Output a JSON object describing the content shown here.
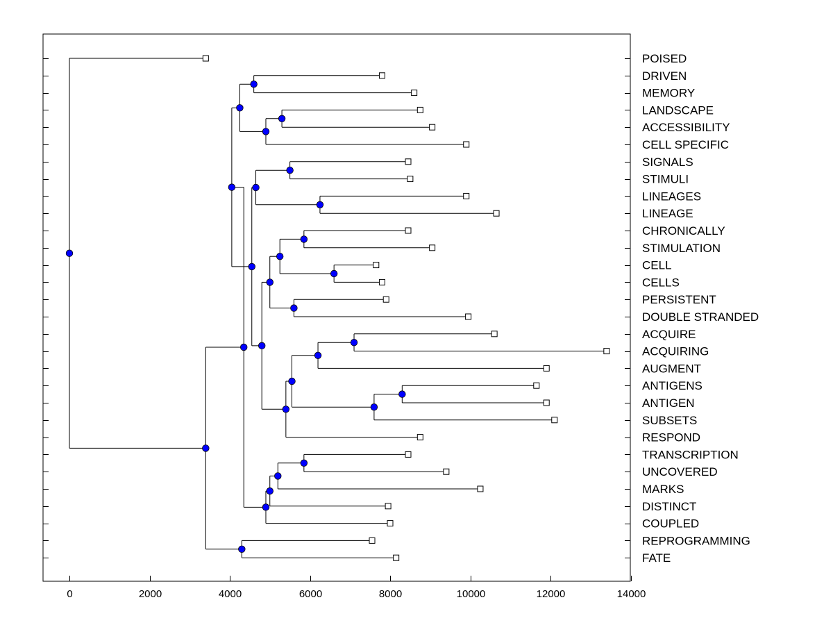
{
  "chart_data": {
    "type": "dendrogram",
    "orientation": "left-to-right",
    "xlim": [
      -650,
      14050
    ],
    "xticks": [
      0,
      2000,
      4000,
      6000,
      8000,
      10000,
      12000,
      14000
    ],
    "xtick_labels": [
      "0",
      "2000",
      "4000",
      "6000",
      "8000",
      "10000",
      "12000",
      "14000"
    ],
    "leaves": [
      {
        "id": 0,
        "label": "POISED",
        "value": 3400
      },
      {
        "id": 1,
        "label": "DRIVEN",
        "value": 7800
      },
      {
        "id": 2,
        "label": "MEMORY",
        "value": 8600
      },
      {
        "id": 3,
        "label": "LANDSCAPE",
        "value": 8750
      },
      {
        "id": 4,
        "label": "ACCESSIBILITY",
        "value": 9050
      },
      {
        "id": 5,
        "label": "CELL SPECIFIC",
        "value": 9900
      },
      {
        "id": 6,
        "label": "SIGNALS",
        "value": 8450
      },
      {
        "id": 7,
        "label": "STIMULI",
        "value": 8500
      },
      {
        "id": 8,
        "label": "LINEAGES",
        "value": 9900
      },
      {
        "id": 9,
        "label": "LINEAGE",
        "value": 10650
      },
      {
        "id": 10,
        "label": "CHRONICALLY",
        "value": 8450
      },
      {
        "id": 11,
        "label": "STIMULATION",
        "value": 9050
      },
      {
        "id": 12,
        "label": "CELL",
        "value": 7650
      },
      {
        "id": 13,
        "label": "CELLS",
        "value": 7800
      },
      {
        "id": 14,
        "label": "PERSISTENT",
        "value": 7900
      },
      {
        "id": 15,
        "label": "DOUBLE STRANDED",
        "value": 9950
      },
      {
        "id": 16,
        "label": "ACQUIRE",
        "value": 10600
      },
      {
        "id": 17,
        "label": "ACQUIRING",
        "value": 13400
      },
      {
        "id": 18,
        "label": "AUGMENT",
        "value": 11900
      },
      {
        "id": 19,
        "label": "ANTIGENS",
        "value": 11650
      },
      {
        "id": 20,
        "label": "ANTIGEN",
        "value": 11900
      },
      {
        "id": 21,
        "label": "SUBSETS",
        "value": 12100
      },
      {
        "id": 22,
        "label": "RESPOND",
        "value": 8750
      },
      {
        "id": 23,
        "label": "TRANSCRIPTION",
        "value": 8450
      },
      {
        "id": 24,
        "label": "UNCOVERED",
        "value": 9400
      },
      {
        "id": 25,
        "label": "MARKS",
        "value": 10250
      },
      {
        "id": 26,
        "label": "DISTINCT",
        "value": 7950
      },
      {
        "id": 27,
        "label": "COUPLED",
        "value": 8000
      },
      {
        "id": 28,
        "label": "REPROGRAMMING",
        "value": 7550
      },
      {
        "id": 29,
        "label": "FATE",
        "value": 8150
      }
    ],
    "merges": [
      {
        "id": "m1",
        "value": 4600,
        "children": [
          1,
          2
        ]
      },
      {
        "id": "m2",
        "value": 5300,
        "children": [
          3,
          4
        ]
      },
      {
        "id": "m3",
        "value": 4900,
        "children": [
          "m2",
          5
        ]
      },
      {
        "id": "m4",
        "value": 4250,
        "children": [
          "m1",
          "m3"
        ]
      },
      {
        "id": "m5",
        "value": 5500,
        "children": [
          6,
          7
        ]
      },
      {
        "id": "m6",
        "value": 6250,
        "children": [
          8,
          9
        ]
      },
      {
        "id": "m7",
        "value": 4650,
        "children": [
          "m5",
          "m6"
        ]
      },
      {
        "id": "m8",
        "value": 5850,
        "children": [
          10,
          11
        ]
      },
      {
        "id": "m9",
        "value": 6600,
        "children": [
          12,
          13
        ]
      },
      {
        "id": "m10",
        "value": 5250,
        "children": [
          "m8",
          "m9"
        ]
      },
      {
        "id": "m11",
        "value": 5600,
        "children": [
          14,
          15
        ]
      },
      {
        "id": "m12",
        "value": 5000,
        "children": [
          "m10",
          "m11"
        ]
      },
      {
        "id": "m13",
        "value": 7100,
        "children": [
          16,
          17
        ]
      },
      {
        "id": "m14",
        "value": 6200,
        "children": [
          "m13",
          18
        ]
      },
      {
        "id": "m15",
        "value": 8300,
        "children": [
          19,
          20
        ]
      },
      {
        "id": "m16",
        "value": 7600,
        "children": [
          "m15",
          21
        ]
      },
      {
        "id": "m17",
        "value": 5550,
        "children": [
          "m14",
          "m16"
        ]
      },
      {
        "id": "m18",
        "value": 5400,
        "children": [
          "m17",
          22
        ]
      },
      {
        "id": "m19",
        "value": 4800,
        "children": [
          "m12",
          "m18"
        ]
      },
      {
        "id": "m20",
        "value": 4550,
        "children": [
          "m7",
          "m19"
        ]
      },
      {
        "id": "m21",
        "value": 4050,
        "children": [
          "m4",
          "m20"
        ]
      },
      {
        "id": "m22",
        "value": 5850,
        "children": [
          23,
          24
        ]
      },
      {
        "id": "m23",
        "value": 5200,
        "children": [
          "m22",
          25
        ]
      },
      {
        "id": "m24",
        "value": 5000,
        "children": [
          "m23",
          26
        ]
      },
      {
        "id": "m25",
        "value": 4900,
        "children": [
          "m24",
          27
        ]
      },
      {
        "id": "m26",
        "value": 4350,
        "children": [
          "m21",
          "m25"
        ]
      },
      {
        "id": "m27",
        "value": 4300,
        "children": [
          28,
          29
        ]
      },
      {
        "id": "m28",
        "value": 3400,
        "children": [
          "m26",
          "m27"
        ]
      },
      {
        "id": "m29",
        "value": 0,
        "children": [
          0,
          "m28"
        ]
      }
    ],
    "colors": {
      "node_fill": "#0000ff",
      "line": "#000000",
      "leaf_fill": "#ffffff"
    }
  }
}
